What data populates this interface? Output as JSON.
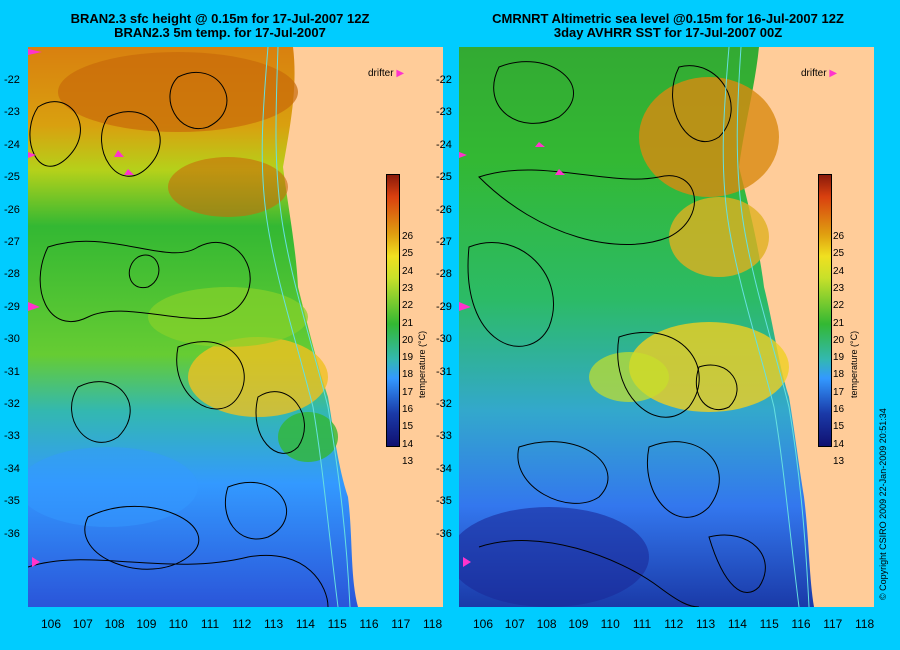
{
  "left_panel": {
    "title_line1": "BRAN2.3 sfc height @ 0.15m for 17-Jul-2007 12Z",
    "title_line2": "BRAN2.3 5m temp. for 17-Jul-2007",
    "drifter_label": "drifter",
    "colorbar_title": "temperature (°C)"
  },
  "right_panel": {
    "title_line1": "CMRNRT Altimetric sea level  @0.15m  for 16-Jul-2007 12Z",
    "title_line2": "3day AVHRR SST for 17-Jul-2007 00Z",
    "drifter_label": "drifter",
    "colorbar_title": "temperature (°C)"
  },
  "y_ticks": [
    "-22",
    "-23",
    "-24",
    "-25",
    "-26",
    "-27",
    "-28",
    "-29",
    "-30",
    "-31",
    "-32",
    "-33",
    "-34",
    "-35",
    "-36"
  ],
  "x_ticks": [
    "106",
    "107",
    "108",
    "109",
    "110",
    "111",
    "112",
    "113",
    "114",
    "115",
    "116",
    "117",
    "118"
  ],
  "colorbar_ticks": [
    "26",
    "25",
    "24",
    "23",
    "22",
    "21",
    "20",
    "19",
    "18",
    "17",
    "16",
    "15",
    "14",
    "13"
  ],
  "copyright": "© Copyright CSIRO 2009   22-Jan-2009 20:51:34",
  "colors": {
    "background": "#00ccff",
    "land": "#ffcc99",
    "contour": "#000000",
    "drifter": "#ff33cc"
  }
}
